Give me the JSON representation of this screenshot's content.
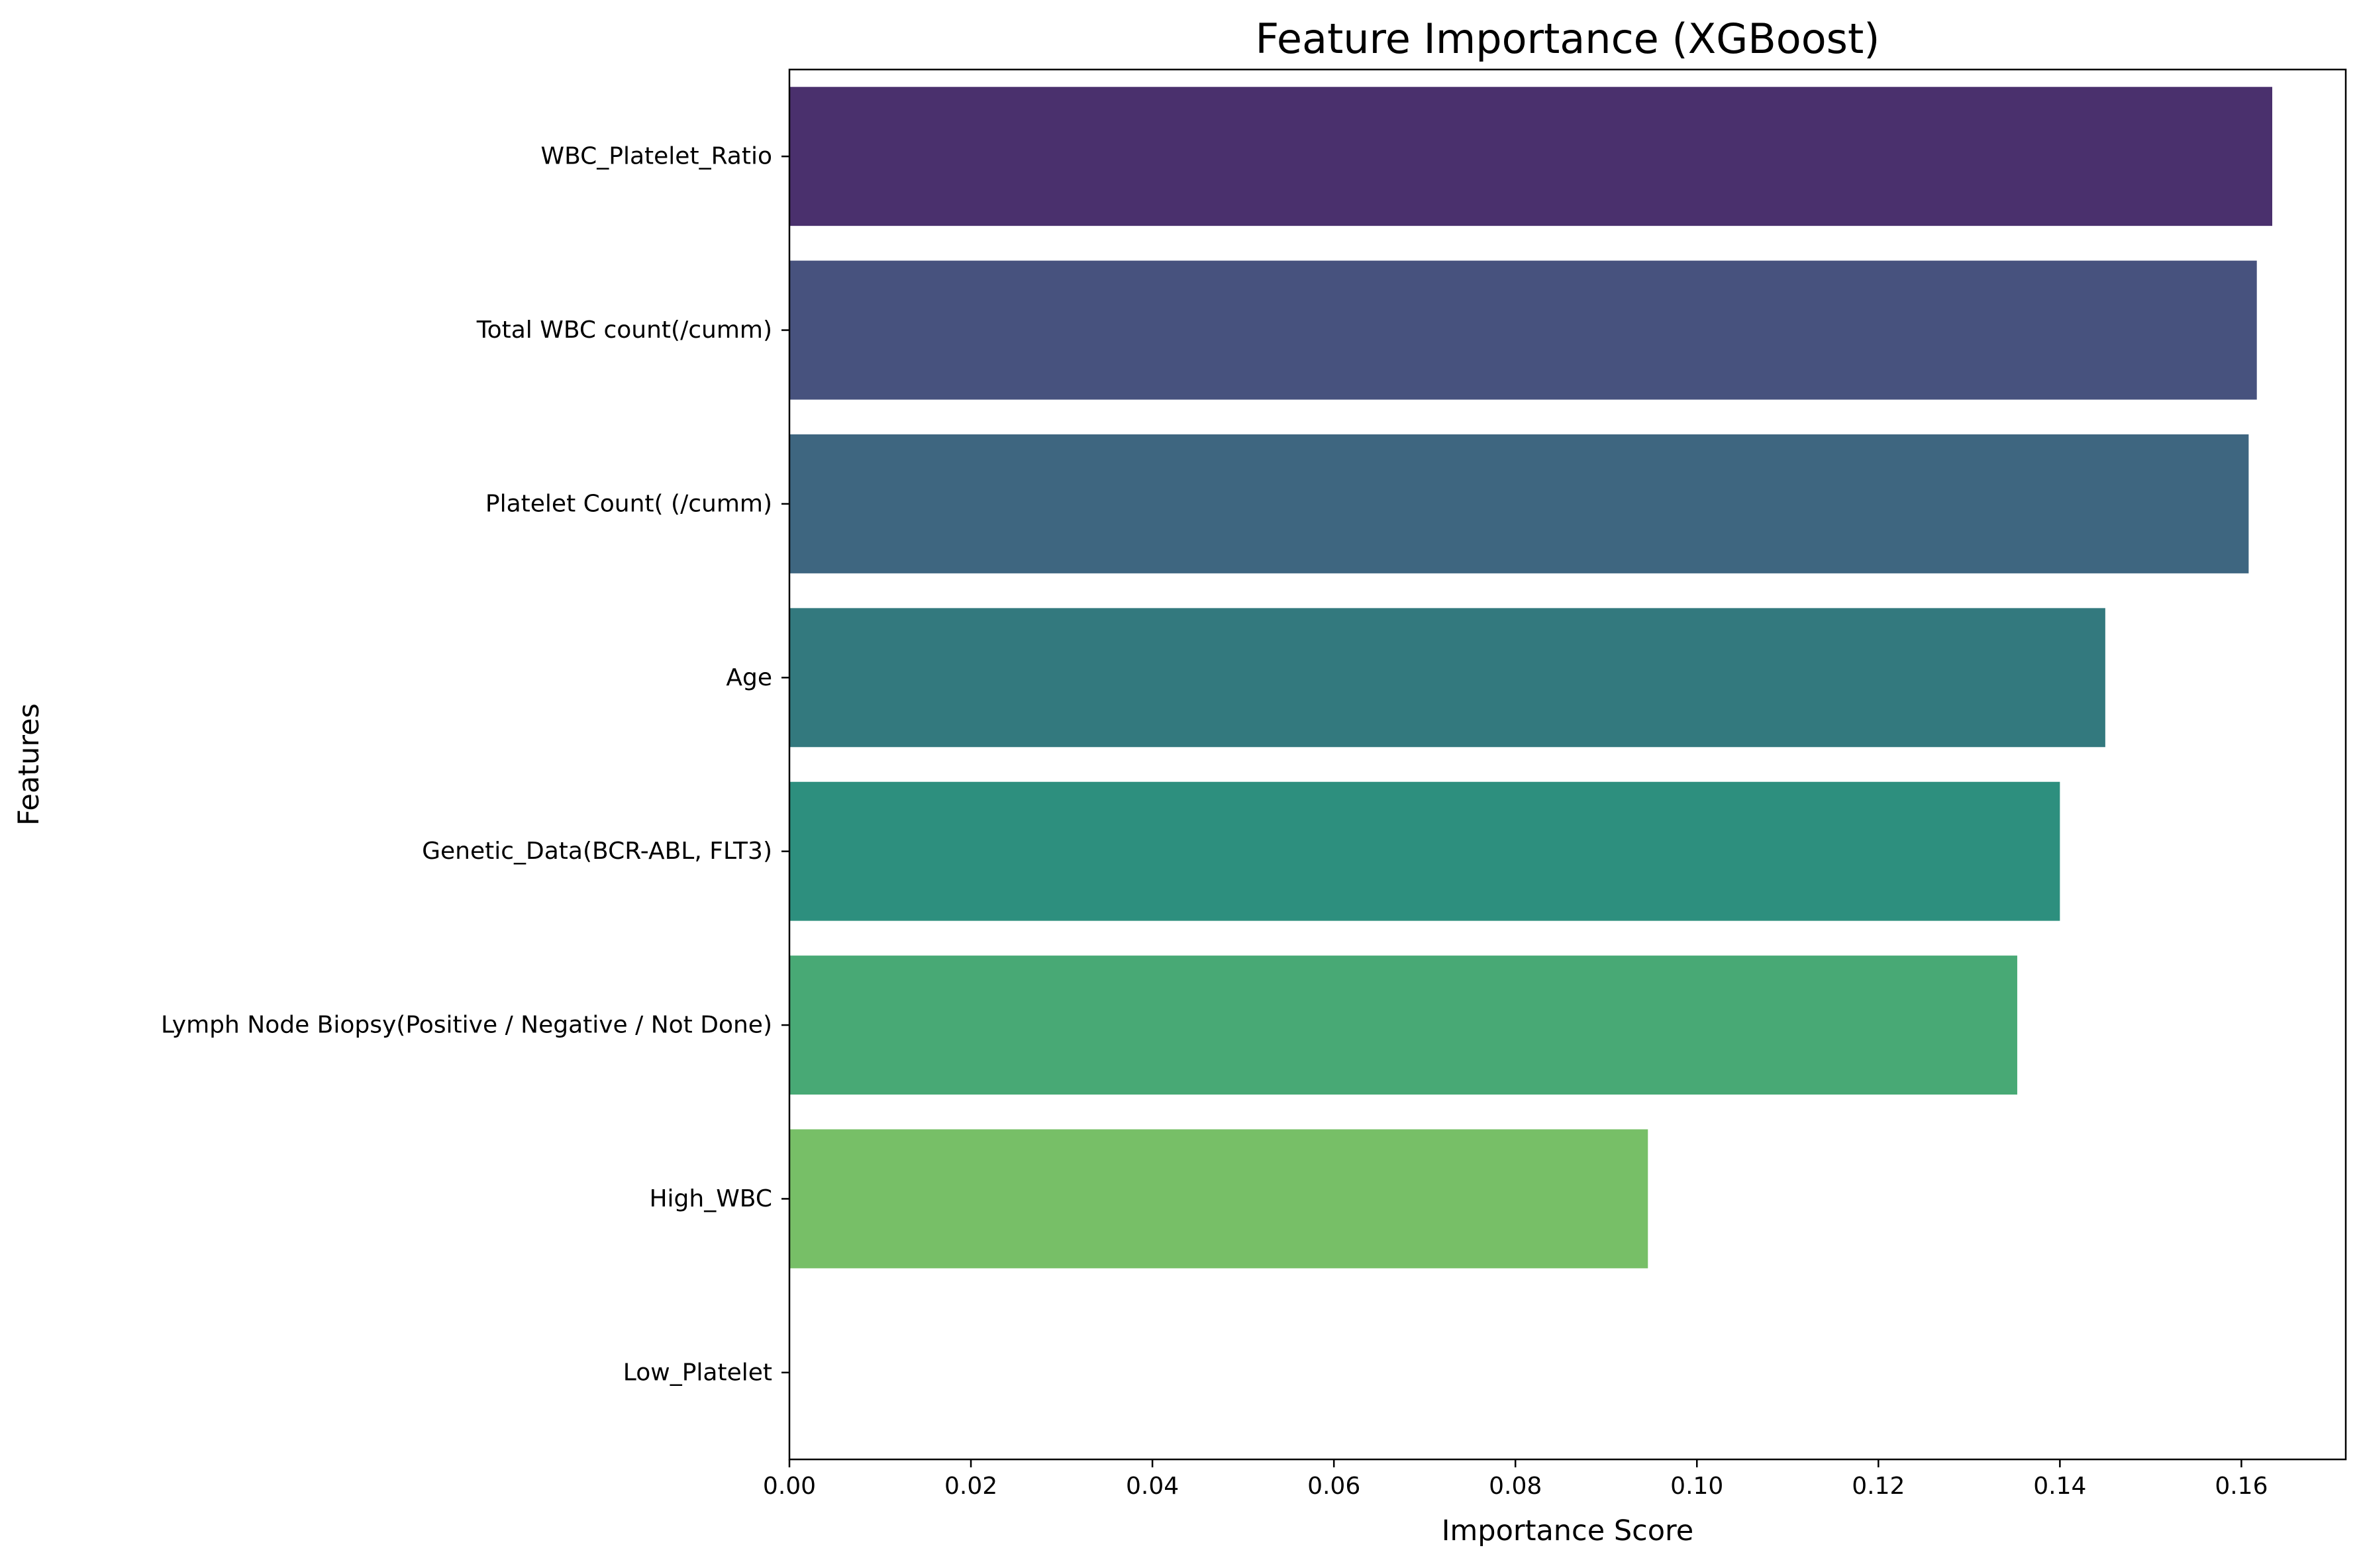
{
  "chart_data": {
    "type": "bar",
    "orientation": "horizontal",
    "title": "Feature Importance (XGBoost)",
    "xlabel": "Importance Score",
    "ylabel": "Features",
    "categories": [
      "WBC_Platelet_Ratio",
      "Total WBC count(/cumm)",
      "Platelet Count( (/cumm)",
      "Age",
      "Genetic_Data(BCR-ABL, FLT3)",
      "Lymph Node Biopsy(Positive / Negative / Not Done)",
      "High_WBC",
      "Low_Platelet"
    ],
    "values": [
      0.1634,
      0.1617,
      0.1608,
      0.145,
      0.14,
      0.1353,
      0.0946,
      0.0
    ],
    "colors": [
      "#4a306d",
      "#47527e",
      "#3e6680",
      "#33797e",
      "#2d8f7e",
      "#48a975",
      "#77bf67",
      "#a0d65a"
    ],
    "xlim": [
      0,
      0.1715
    ],
    "xticks": [
      "0.00",
      "0.02",
      "0.04",
      "0.06",
      "0.08",
      "0.10",
      "0.12",
      "0.14",
      "0.16"
    ],
    "xtick_values": [
      0,
      0.02,
      0.04,
      0.06,
      0.08,
      0.1,
      0.12,
      0.14,
      0.16
    ],
    "grid": false,
    "legend": "none"
  }
}
